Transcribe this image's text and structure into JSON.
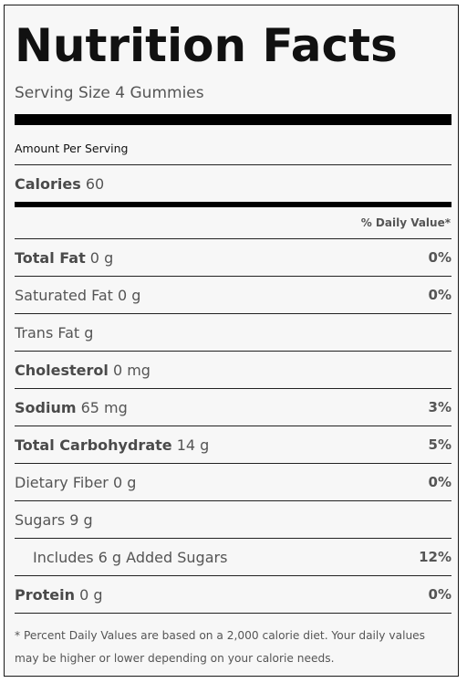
{
  "title": "Nutrition Facts",
  "serving_size": "Serving Size 4 Gummies",
  "amount_per_serving": "Amount Per Serving",
  "calories": {
    "label": "Calories",
    "value": "60"
  },
  "daily_value_header": "% Daily Value*",
  "nutrients": [
    {
      "label": "Total Fat",
      "amount": " 0 g",
      "dv": "0%"
    },
    {
      "label": "Saturated Fat 0 g",
      "amount": "",
      "dv": "0%"
    },
    {
      "label": "Trans Fat g",
      "amount": "",
      "dv": ""
    },
    {
      "label": "Cholesterol",
      "amount": " 0 mg",
      "dv": ""
    },
    {
      "label": "Sodium",
      "amount": " 65 mg",
      "dv": "3%"
    },
    {
      "label": "Total Carbohydrate",
      "amount": " 14 g",
      "dv": "5%"
    },
    {
      "label": "Dietary Fiber 0 g",
      "amount": "",
      "dv": "0%"
    },
    {
      "label": "Sugars 9 g",
      "amount": "",
      "dv": ""
    },
    {
      "label": "Includes 6 g Added Sugars",
      "amount": "",
      "dv": "12%"
    },
    {
      "label": "Protein",
      "amount": " 0 g",
      "dv": "0%"
    }
  ],
  "footnote": "* Percent Daily Values are based on a 2,000 calorie diet. Your daily values may be higher or lower depending on your calorie needs."
}
